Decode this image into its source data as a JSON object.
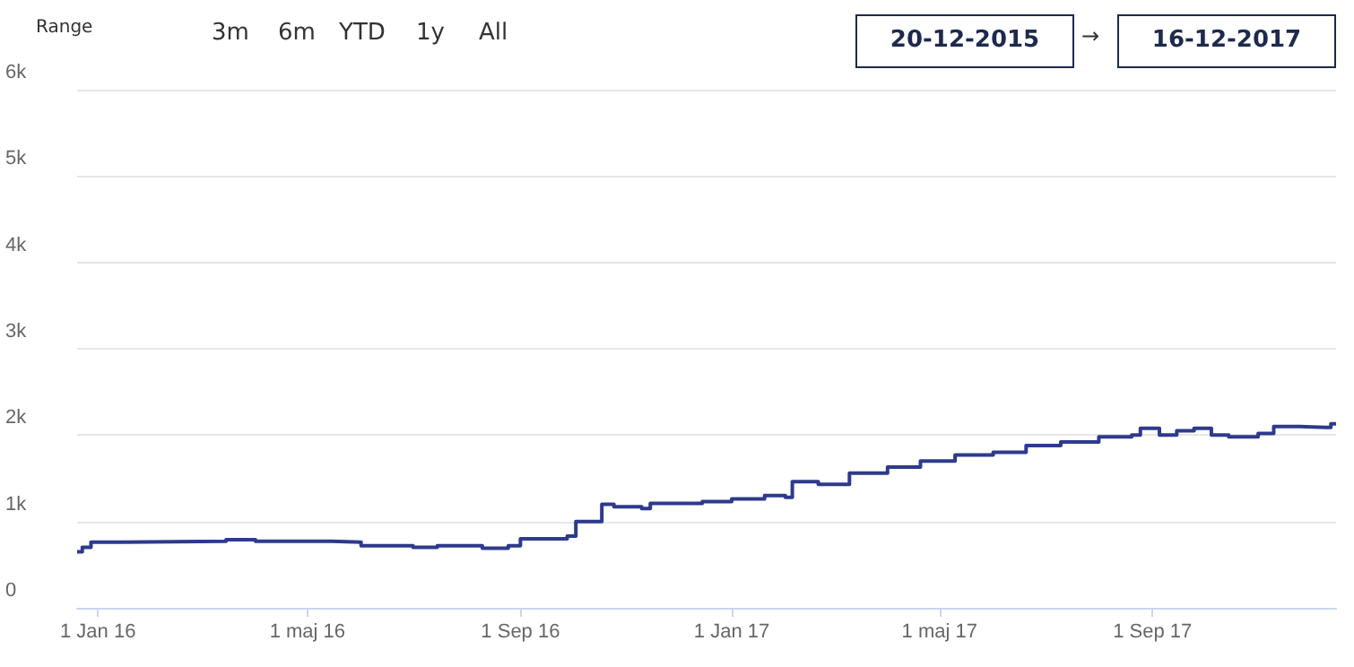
{
  "chart_data": {
    "type": "step",
    "annotations": [
      "Range",
      "3m",
      "6m",
      "YTD",
      "1y",
      "All",
      "20-12-2015",
      "→",
      "16-12-2017"
    ],
    "x": [
      "2015-12-20",
      "2015-12-23",
      "2015-12-28",
      "2016-01-15",
      "2016-03-15",
      "2016-04-01",
      "2016-05-15",
      "2016-06-01",
      "2016-07-01",
      "2016-07-15",
      "2016-08-10",
      "2016-08-25",
      "2016-09-01",
      "2016-09-28",
      "2016-10-03",
      "2016-10-18",
      "2016-10-25",
      "2016-11-10",
      "2016-11-15",
      "2016-12-15",
      "2017-01-01",
      "2017-01-20",
      "2017-02-01",
      "2017-02-05",
      "2017-02-20",
      "2017-03-10",
      "2017-04-01",
      "2017-04-20",
      "2017-05-10",
      "2017-06-01",
      "2017-06-20",
      "2017-07-10",
      "2017-08-01",
      "2017-08-20",
      "2017-08-25",
      "2017-09-05",
      "2017-09-15",
      "2017-09-25",
      "2017-10-05",
      "2017-10-15",
      "2017-11-01",
      "2017-11-10",
      "2017-11-25",
      "2017-12-10",
      "2017-12-13",
      "2017-12-16"
    ],
    "series": [
      {
        "color": "#2e3a8c",
        "values": [
          650,
          700,
          760,
          770,
          790,
          770,
          760,
          720,
          700,
          720,
          690,
          720,
          800,
          830,
          1000,
          1200,
          1170,
          1150,
          1210,
          1230,
          1260,
          1300,
          1280,
          1460,
          1430,
          1560,
          1630,
          1700,
          1770,
          1800,
          1880,
          1920,
          1980,
          2000,
          2080,
          2000,
          2050,
          2080,
          2000,
          1980,
          2020,
          2100,
          2090,
          2090,
          2130,
          2130
        ]
      }
    ],
    "xlim": [
      "2015-12-20",
      "2017-12-16"
    ],
    "xticks": [
      {
        "value": "2016-01-01",
        "label": "1 Jan 16"
      },
      {
        "value": "2016-05-01",
        "label": "1 maj 16"
      },
      {
        "value": "2016-09-01",
        "label": "1 Sep 16"
      },
      {
        "value": "2017-01-01",
        "label": "1 Jan 17"
      },
      {
        "value": "2017-05-01",
        "label": "1 maj 17"
      },
      {
        "value": "2017-09-01",
        "label": "1 Sep 17"
      }
    ],
    "ylim": [
      0,
      6000
    ],
    "yticks": [
      0,
      {
        "value": 1000,
        "label": "1k"
      },
      {
        "value": 2000,
        "label": "2k"
      },
      {
        "value": 3000,
        "label": "3k"
      },
      {
        "value": 4000,
        "label": "4k"
      },
      {
        "value": 5000,
        "label": "5k"
      },
      {
        "value": 6000,
        "label": "6k"
      }
    ],
    "grid": "y",
    "marker": "none"
  }
}
